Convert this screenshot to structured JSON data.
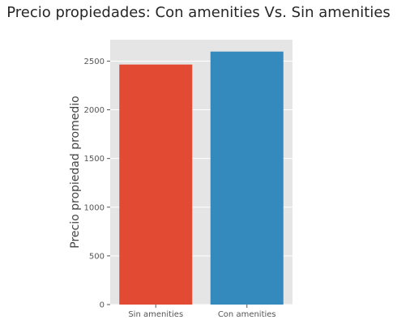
{
  "chart_data": {
    "type": "bar",
    "title": "Precio propiedades: Con amenities Vs. Sin amenities",
    "xlabel": "",
    "ylabel": "Precio propiedad promedio",
    "categories": [
      "Sin amenities",
      "Con amenities"
    ],
    "values": [
      2465,
      2598
    ],
    "colors": [
      "#E24A33",
      "#348ABD"
    ],
    "ylim": [
      0,
      2720
    ],
    "yticks": [
      0,
      500,
      1000,
      1500,
      2000,
      2500
    ],
    "grid": true,
    "legend": "none",
    "plot_background": "#E5E5E5"
  }
}
